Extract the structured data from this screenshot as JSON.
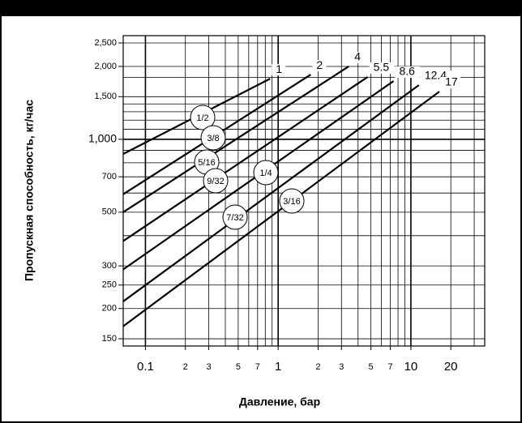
{
  "chart_data": {
    "type": "line",
    "xlabel": "Давление, бар",
    "ylabel": "Пропускная способность, кг/час",
    "log_x": true,
    "log_y": true,
    "grid": true,
    "xlim": [
      0.068,
      36
    ],
    "ylim": [
      140,
      2680
    ],
    "xticks": [
      0.1,
      {
        "value": 0.2,
        "label": "2"
      },
      {
        "value": 0.3,
        "label": "3"
      },
      {
        "value": 0.5,
        "label": "5"
      },
      {
        "value": 0.7,
        "label": "7"
      },
      1,
      2,
      3,
      5,
      7,
      10,
      20
    ],
    "yticks": [
      150,
      200,
      250,
      300,
      500,
      700,
      {
        "value": 1000,
        "label": "1,000"
      },
      {
        "value": 1500,
        "label": "1,500"
      },
      {
        "value": 2000,
        "label": "2,000"
      },
      {
        "value": 2500,
        "label": "2,500"
      }
    ],
    "xgrid": [
      0.1,
      0.2,
      0.3,
      0.4,
      0.5,
      0.6,
      0.7,
      0.8,
      0.9,
      1,
      2,
      3,
      4,
      5,
      6,
      7,
      8,
      9,
      10,
      20,
      30
    ],
    "ygrid": [
      150,
      200,
      250,
      300,
      400,
      500,
      600,
      700,
      800,
      900,
      1000,
      1100,
      1200,
      1300,
      1400,
      1500,
      1800,
      2000,
      2500
    ],
    "series": [
      {
        "name": "1/2",
        "end_label": "1",
        "color": "#000",
        "x": [
          0.068,
          0.87
        ],
        "values": [
          870,
          1780
        ]
      },
      {
        "name": "3/8",
        "end_label": "2",
        "color": "#000",
        "x": [
          0.068,
          1.76
        ],
        "values": [
          593,
          1850
        ]
      },
      {
        "name": "5/16",
        "end_label": "4",
        "color": "#000",
        "x": [
          0.068,
          3.4
        ],
        "values": [
          500,
          2000
        ]
      },
      {
        "name": "9/32",
        "end_label": "5.5",
        "color": "#000",
        "x": [
          0.068,
          4.73
        ],
        "values": [
          380,
          1810
        ]
      },
      {
        "name": "1/4",
        "end_label": "8.6",
        "color": "#000",
        "x": [
          0.068,
          7.4
        ],
        "values": [
          290,
          1740
        ]
      },
      {
        "name": "7/32",
        "end_label": "12.4",
        "color": "#000",
        "x": [
          0.068,
          11.5
        ],
        "values": [
          214,
          1675
        ]
      },
      {
        "name": "3/16",
        "end_label": "17",
        "color": "#000",
        "x": [
          0.068,
          16.4
        ],
        "values": [
          169,
          1575
        ]
      }
    ]
  }
}
